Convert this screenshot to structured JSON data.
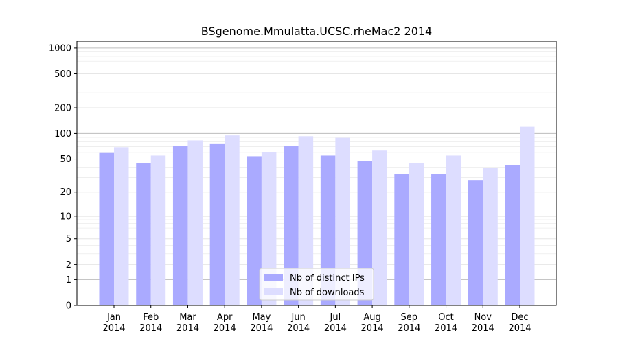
{
  "chart_data": {
    "type": "bar",
    "title": "BSgenome.Mmulatta.UCSC.rheMac2 2014",
    "xlabel": "",
    "ylabel": "",
    "y_scale": "log1p",
    "ylim": [
      0,
      1200
    ],
    "y_ticks": [
      0,
      1,
      2,
      5,
      10,
      20,
      50,
      100,
      200,
      500,
      1000
    ],
    "grid": true,
    "legend_position": "bottom-center",
    "categories": [
      [
        "Jan",
        "2014"
      ],
      [
        "Feb",
        "2014"
      ],
      [
        "Mar",
        "2014"
      ],
      [
        "Apr",
        "2014"
      ],
      [
        "May",
        "2014"
      ],
      [
        "Jun",
        "2014"
      ],
      [
        "Jul",
        "2014"
      ],
      [
        "Aug",
        "2014"
      ],
      [
        "Sep",
        "2014"
      ],
      [
        "Oct",
        "2014"
      ],
      [
        "Nov",
        "2014"
      ],
      [
        "Dec",
        "2014"
      ]
    ],
    "series": [
      {
        "name": "Nb of distinct IPs",
        "color": "#aaaaff",
        "values": [
          59,
          45,
          71,
          75,
          54,
          72,
          55,
          47,
          33,
          33,
          28,
          42
        ]
      },
      {
        "name": "Nb of downloads",
        "color": "#ddddff",
        "values": [
          69,
          55,
          83,
          95,
          60,
          93,
          89,
          63,
          45,
          55,
          39,
          120
        ]
      }
    ]
  }
}
